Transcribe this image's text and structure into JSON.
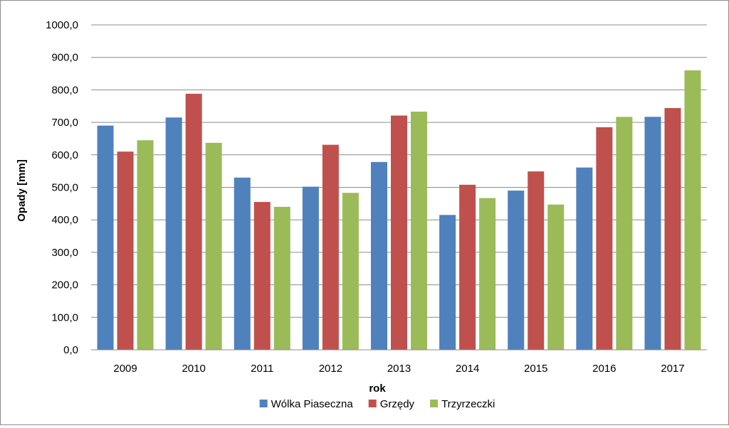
{
  "chart_data": {
    "type": "bar",
    "xlabel": "rok",
    "ylabel": "Opady  [mm]",
    "ylim": [
      0,
      1000
    ],
    "ytick_step": 100,
    "ytick_labels": [
      "0,0",
      "100,0",
      "200,0",
      "300,0",
      "400,0",
      "500,0",
      "600,0",
      "700,0",
      "800,0",
      "900,0",
      "1000,0"
    ],
    "grid": true,
    "legend_position": "bottom",
    "categories": [
      "2009",
      "2010",
      "2011",
      "2012",
      "2013",
      "2014",
      "2015",
      "2016",
      "2017"
    ],
    "series": [
      {
        "name": "Wólka Piaseczna",
        "color": "#4f81bd",
        "values": [
          690,
          715,
          530,
          502,
          578,
          415,
          490,
          561,
          717
        ]
      },
      {
        "name": "Grzędy",
        "color": "#c0504d",
        "values": [
          610,
          788,
          455,
          631,
          721,
          508,
          549,
          685,
          744
        ]
      },
      {
        "name": "Trzyrzeczki",
        "color": "#9bbb59",
        "values": [
          645,
          637,
          440,
          483,
          733,
          467,
          447,
          717,
          860
        ]
      }
    ]
  }
}
